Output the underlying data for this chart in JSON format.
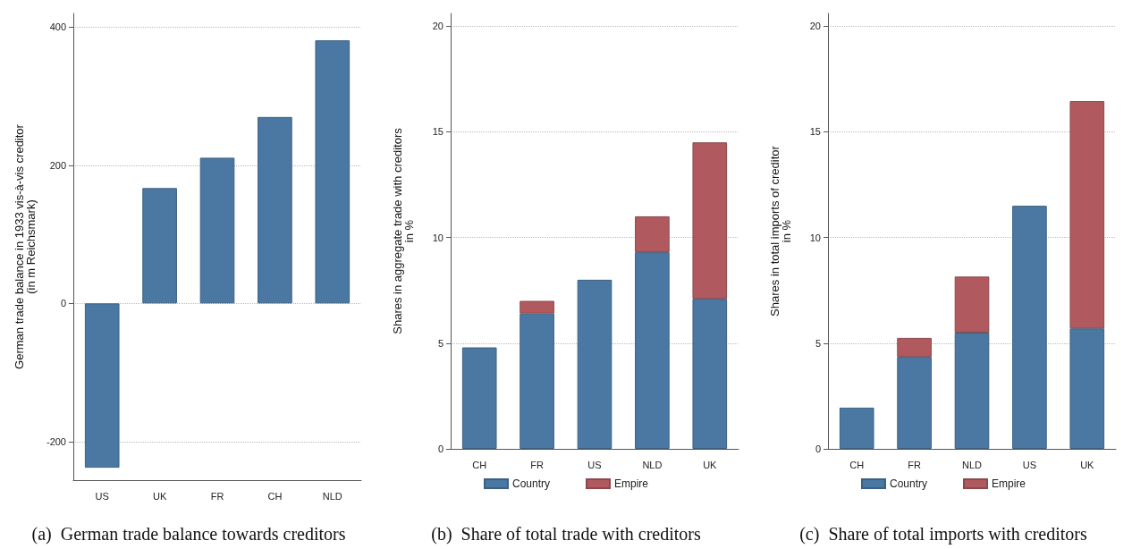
{
  "chart_data": [
    {
      "type": "bar",
      "title": "(a)  German trade balance towards creditors",
      "ylabel": "German trade balance in 1933 vis-à-vis creditor\n(in m Reichsmark)",
      "categories": [
        "US",
        "UK",
        "FR",
        "CH",
        "NLD"
      ],
      "values": [
        -238,
        167,
        211,
        270,
        381
      ],
      "color": "#4a78a3",
      "ylim": [
        -256,
        420
      ],
      "yticks": [
        -200,
        0,
        200,
        400
      ],
      "grid": "y"
    },
    {
      "type": "bar",
      "title": "(b)  Share of total trade with creditors",
      "ylabel": "Shares in aggregate trade with creditors\nin %",
      "categories": [
        "CH",
        "FR",
        "US",
        "NLD",
        "UK"
      ],
      "stacked": true,
      "ylim": [
        0,
        20.6
      ],
      "yticks": [
        0,
        5,
        10,
        15,
        20
      ],
      "grid": "y",
      "legend": "bottom",
      "series": [
        {
          "name": "Country",
          "color": "#4a78a3",
          "values": [
            4.8,
            6.4,
            8.0,
            9.3,
            7.1
          ]
        },
        {
          "name": "Empire",
          "color": "#b05a5f",
          "values": [
            null,
            0.6,
            null,
            1.7,
            7.4
          ]
        }
      ]
    },
    {
      "type": "bar",
      "title": "(c)  Share of total imports with creditors",
      "ylabel": "Shares in total imports of creditor\nin %",
      "categories": [
        "CH",
        "FR",
        "NLD",
        "US",
        "UK"
      ],
      "stacked": true,
      "ylim": [
        0,
        20.6
      ],
      "yticks": [
        0,
        5,
        10,
        15,
        20
      ],
      "grid": "y",
      "legend": "bottom",
      "series": [
        {
          "name": "Country",
          "color": "#4a78a3",
          "values": [
            1.95,
            4.35,
            5.5,
            11.5,
            5.7
          ]
        },
        {
          "name": "Empire",
          "color": "#b05a5f",
          "values": [
            null,
            0.9,
            2.65,
            null,
            10.75
          ]
        }
      ]
    }
  ]
}
